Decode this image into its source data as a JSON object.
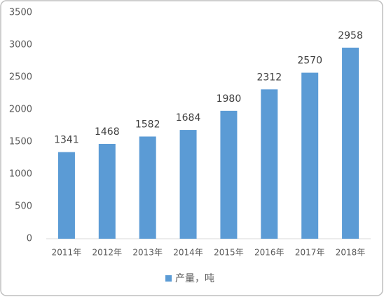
{
  "chart_data": {
    "type": "bar",
    "categories": [
      "2011年",
      "2012年",
      "2013年",
      "2014年",
      "2015年",
      "2016年",
      "2017年",
      "2018年"
    ],
    "series": [
      {
        "name": "产量，吨",
        "color": "#5b9bd5",
        "values": [
          1341,
          1468,
          1582,
          1684,
          1980,
          2312,
          2570,
          2958
        ]
      }
    ],
    "ylim": [
      0,
      3500
    ],
    "yticks": [
      0,
      500,
      1000,
      1500,
      2000,
      2500,
      3000,
      3500
    ],
    "grid": false,
    "legend": "bottom"
  }
}
